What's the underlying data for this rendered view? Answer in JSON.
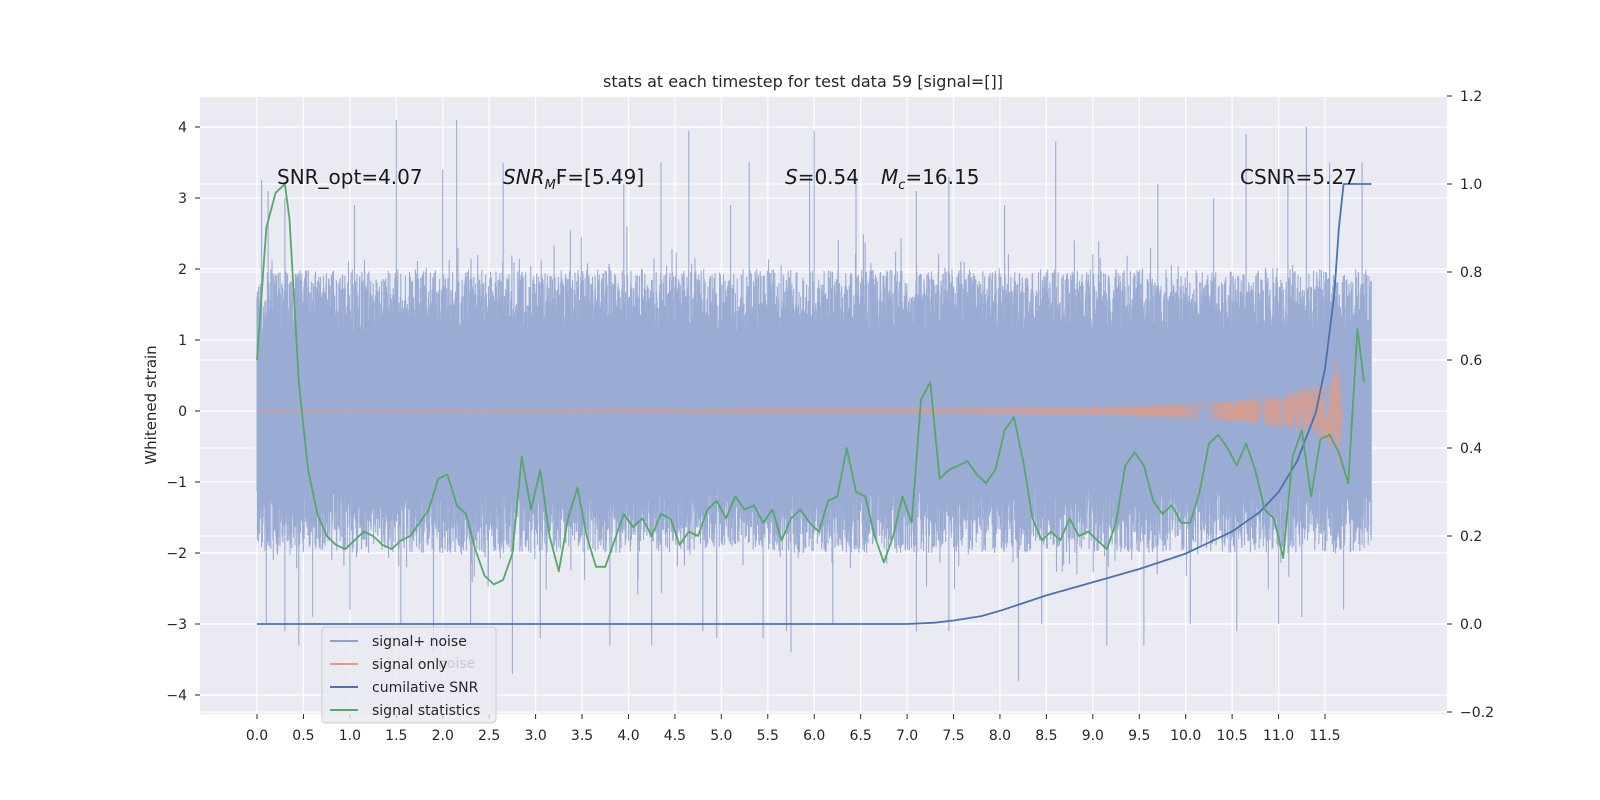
{
  "chart_data": {
    "type": "line",
    "title": "stats at each timestep for test data 59 [signal=[]]",
    "ylabel": "Whitened strain",
    "xlim": [
      -0.6,
      12.6
    ],
    "ylim": [
      -4.2,
      4.4
    ],
    "y2lim": [
      -0.2,
      1.2
    ],
    "x_ticks": [
      "0.0",
      "0.5",
      "1.0",
      "1.5",
      "2.0",
      "2.5",
      "3.0",
      "3.5",
      "4.0",
      "4.5",
      "5.0",
      "5.5",
      "6.0",
      "6.5",
      "7.0",
      "7.5",
      "8.0",
      "8.5",
      "9.0",
      "9.5",
      "10.0",
      "10.5",
      "11.0",
      "11.5"
    ],
    "y_ticks": [
      "4",
      "3",
      "2",
      "1",
      "0",
      "−1",
      "−2",
      "−3",
      "−4"
    ],
    "y2_ticks": [
      "1.2",
      "1.0",
      "0.8",
      "0.6",
      "0.4",
      "0.2",
      "0.0",
      "−0.2"
    ],
    "grid": true,
    "legend": {
      "position": "lower-left",
      "entries": [
        {
          "label": "signal+ noise",
          "color": "#8ea2cf"
        },
        {
          "label": "signal only",
          "color": "#e59b7e"
        },
        {
          "label": "cumilative SNR",
          "color": "#4c72b0"
        },
        {
          "label": "signal statistics",
          "color": "#55a868"
        }
      ],
      "ghost_text": [
        "noise"
      ]
    },
    "annotations": {
      "snr_opt": "SNR_opt=4.07",
      "snr_mf_sym": "SNR",
      "snr_mf_sub": "M",
      "snr_mf_rest": "F=[5.49]",
      "s_sym": "S",
      "s_val": "=0.54",
      "mc_sym": "M",
      "mc_sub": "c",
      "mc_val": "=16.15",
      "csnr": "CSNR=5.27"
    },
    "series": [
      {
        "name": "signal+ noise",
        "axis": "left",
        "kind": "noise_band",
        "x_range": [
          0.0,
          12.0
        ],
        "typical_upper": 2.0,
        "typical_lower": -2.0,
        "peaks": [
          [
            0.05,
            3.25
          ],
          [
            0.12,
            3.1
          ],
          [
            0.3,
            3.0
          ],
          [
            1.05,
            2.9
          ],
          [
            1.5,
            4.1
          ],
          [
            2.0,
            3.4
          ],
          [
            2.15,
            4.1
          ],
          [
            2.65,
            3.5
          ],
          [
            3.95,
            3.2
          ],
          [
            4.35,
            3.5
          ],
          [
            4.65,
            3.95
          ],
          [
            5.1,
            2.9
          ],
          [
            5.3,
            3.5
          ],
          [
            5.95,
            3.3
          ],
          [
            6.0,
            3.95
          ],
          [
            6.45,
            3.3
          ],
          [
            7.1,
            3.1
          ],
          [
            7.45,
            3.3
          ],
          [
            8.05,
            2.9
          ],
          [
            8.6,
            3.8
          ],
          [
            9.7,
            3.2
          ],
          [
            10.3,
            3.0
          ],
          [
            10.65,
            3.9
          ],
          [
            11.1,
            3.3
          ],
          [
            11.3,
            4.0
          ],
          [
            11.55,
            3.5
          ],
          [
            11.9,
            3.5
          ]
        ],
        "troughs": [
          [
            0.1,
            -3.0
          ],
          [
            0.3,
            -3.1
          ],
          [
            0.45,
            -3.3
          ],
          [
            0.6,
            -2.9
          ],
          [
            1.0,
            -2.8
          ],
          [
            1.55,
            -3.0
          ],
          [
            1.9,
            -3.4
          ],
          [
            2.3,
            -3.0
          ],
          [
            2.75,
            -3.7
          ],
          [
            3.05,
            -3.2
          ],
          [
            3.8,
            -3.3
          ],
          [
            4.25,
            -3.3
          ],
          [
            4.8,
            -3.1
          ],
          [
            4.95,
            -3.2
          ],
          [
            5.45,
            -3.2
          ],
          [
            5.75,
            -3.4
          ],
          [
            5.7,
            -3.1
          ],
          [
            6.2,
            -3.0
          ],
          [
            7.1,
            -3.1
          ],
          [
            7.45,
            -3.1
          ],
          [
            8.2,
            -3.8
          ],
          [
            8.45,
            -3.0
          ],
          [
            9.15,
            -3.3
          ],
          [
            9.55,
            -3.3
          ],
          [
            10.05,
            -3.0
          ],
          [
            10.55,
            -3.1
          ],
          [
            11.0,
            -3.0
          ],
          [
            11.25,
            -2.9
          ],
          [
            11.7,
            -2.8
          ]
        ]
      },
      {
        "name": "signal only",
        "axis": "left",
        "kind": "chirp",
        "x_range": [
          0.0,
          11.68
        ],
        "amplitude_points": [
          [
            0.0,
            0.01
          ],
          [
            7.5,
            0.03
          ],
          [
            9.0,
            0.06
          ],
          [
            10.0,
            0.1
          ],
          [
            10.5,
            0.15
          ],
          [
            11.0,
            0.22
          ],
          [
            11.4,
            0.35
          ],
          [
            11.6,
            0.6
          ],
          [
            11.65,
            0.85
          ],
          [
            11.68,
            0.0
          ]
        ]
      },
      {
        "name": "cumilative SNR",
        "axis": "right",
        "x": [
          0.0,
          1.0,
          2.0,
          3.0,
          4.0,
          5.0,
          6.0,
          7.0,
          7.3,
          7.5,
          7.8,
          8.0,
          8.5,
          9.0,
          9.5,
          10.0,
          10.5,
          10.8,
          11.0,
          11.2,
          11.4,
          11.5,
          11.6,
          11.65,
          11.7,
          12.0
        ],
        "y": [
          0.0,
          0.0,
          0.0,
          0.0,
          0.0,
          0.0,
          0.0,
          0.0,
          0.003,
          0.008,
          0.018,
          0.03,
          0.065,
          0.095,
          0.125,
          0.16,
          0.21,
          0.255,
          0.3,
          0.37,
          0.48,
          0.58,
          0.75,
          0.9,
          1.0,
          1.0
        ]
      },
      {
        "name": "signal statistics",
        "axis": "right",
        "x": [
          0.0,
          0.1,
          0.2,
          0.3,
          0.35,
          0.45,
          0.55,
          0.65,
          0.75,
          0.85,
          0.95,
          1.05,
          1.15,
          1.25,
          1.35,
          1.45,
          1.55,
          1.65,
          1.75,
          1.85,
          1.95,
          2.05,
          2.15,
          2.25,
          2.35,
          2.45,
          2.55,
          2.65,
          2.75,
          2.85,
          2.95,
          3.05,
          3.15,
          3.25,
          3.35,
          3.45,
          3.55,
          3.65,
          3.75,
          3.85,
          3.95,
          4.05,
          4.15,
          4.25,
          4.35,
          4.45,
          4.55,
          4.65,
          4.75,
          4.85,
          4.95,
          5.05,
          5.15,
          5.25,
          5.35,
          5.45,
          5.55,
          5.65,
          5.75,
          5.85,
          5.95,
          6.05,
          6.15,
          6.25,
          6.35,
          6.45,
          6.55,
          6.65,
          6.75,
          6.85,
          6.95,
          7.05,
          7.15,
          7.25,
          7.35,
          7.45,
          7.55,
          7.65,
          7.75,
          7.85,
          7.95,
          8.05,
          8.15,
          8.25,
          8.35,
          8.45,
          8.55,
          8.65,
          8.75,
          8.85,
          8.95,
          9.05,
          9.15,
          9.25,
          9.35,
          9.45,
          9.55,
          9.65,
          9.75,
          9.85,
          9.95,
          10.05,
          10.15,
          10.25,
          10.35,
          10.45,
          10.55,
          10.65,
          10.75,
          10.85,
          10.95,
          11.05,
          11.15,
          11.25,
          11.35,
          11.45,
          11.55,
          11.65,
          11.75,
          11.85,
          11.92
        ],
        "y": [
          0.6,
          0.9,
          0.98,
          1.0,
          0.92,
          0.55,
          0.35,
          0.25,
          0.2,
          0.18,
          0.17,
          0.19,
          0.21,
          0.2,
          0.18,
          0.17,
          0.19,
          0.2,
          0.23,
          0.26,
          0.33,
          0.34,
          0.27,
          0.25,
          0.17,
          0.11,
          0.09,
          0.1,
          0.16,
          0.38,
          0.26,
          0.35,
          0.2,
          0.12,
          0.24,
          0.31,
          0.2,
          0.13,
          0.13,
          0.19,
          0.25,
          0.22,
          0.24,
          0.2,
          0.25,
          0.24,
          0.18,
          0.21,
          0.2,
          0.26,
          0.28,
          0.24,
          0.29,
          0.26,
          0.27,
          0.23,
          0.26,
          0.19,
          0.24,
          0.26,
          0.23,
          0.21,
          0.28,
          0.29,
          0.4,
          0.3,
          0.29,
          0.2,
          0.14,
          0.2,
          0.29,
          0.23,
          0.51,
          0.55,
          0.33,
          0.35,
          0.36,
          0.37,
          0.34,
          0.32,
          0.35,
          0.44,
          0.47,
          0.37,
          0.24,
          0.19,
          0.21,
          0.19,
          0.24,
          0.2,
          0.21,
          0.19,
          0.17,
          0.23,
          0.36,
          0.39,
          0.36,
          0.28,
          0.25,
          0.27,
          0.23,
          0.23,
          0.3,
          0.41,
          0.43,
          0.4,
          0.36,
          0.41,
          0.35,
          0.26,
          0.24,
          0.15,
          0.38,
          0.44,
          0.29,
          0.42,
          0.43,
          0.39,
          0.32,
          0.67,
          0.55
        ]
      }
    ]
  }
}
